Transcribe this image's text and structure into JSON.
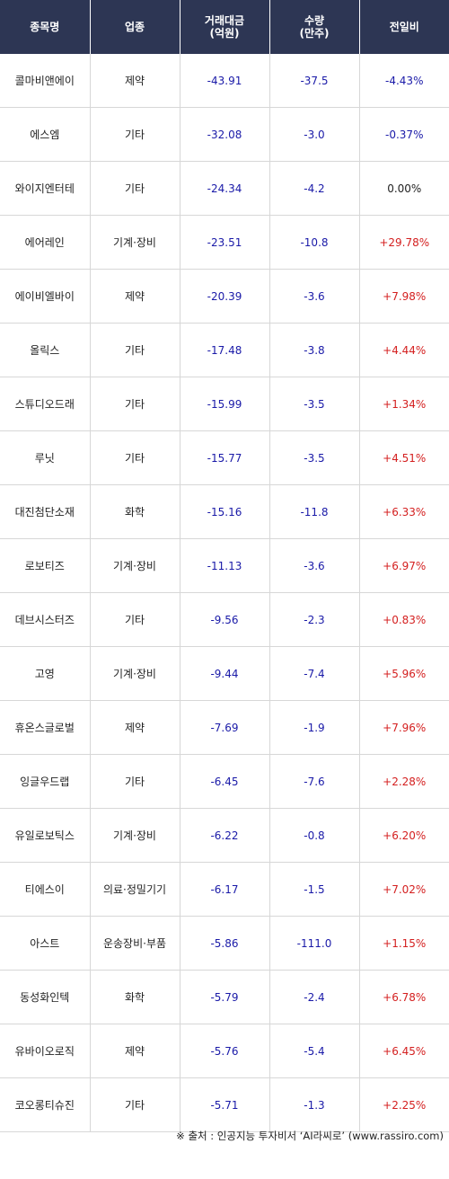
{
  "headers": {
    "name": "종목명",
    "sector": "업종",
    "amount_line1": "거래대금",
    "amount_line2": "(억원)",
    "volume_line1": "수량",
    "volume_line2": "(만주)",
    "change": "전일비"
  },
  "rows": [
    {
      "name": "콜마비앤에이",
      "sector": "제약",
      "amount": "-43.91",
      "volume": "-37.5",
      "change": "-4.43%",
      "dir": "down"
    },
    {
      "name": "에스엠",
      "sector": "기타",
      "amount": "-32.08",
      "volume": "-3.0",
      "change": "-0.37%",
      "dir": "down"
    },
    {
      "name": "와이지엔터테",
      "sector": "기타",
      "amount": "-24.34",
      "volume": "-4.2",
      "change": "0.00%",
      "dir": "flat"
    },
    {
      "name": "에어레인",
      "sector": "기계·장비",
      "amount": "-23.51",
      "volume": "-10.8",
      "change": "+29.78%",
      "dir": "up"
    },
    {
      "name": "에이비엘바이",
      "sector": "제약",
      "amount": "-20.39",
      "volume": "-3.6",
      "change": "+7.98%",
      "dir": "up"
    },
    {
      "name": "올릭스",
      "sector": "기타",
      "amount": "-17.48",
      "volume": "-3.8",
      "change": "+4.44%",
      "dir": "up"
    },
    {
      "name": "스튜디오드래",
      "sector": "기타",
      "amount": "-15.99",
      "volume": "-3.5",
      "change": "+1.34%",
      "dir": "up"
    },
    {
      "name": "루닛",
      "sector": "기타",
      "amount": "-15.77",
      "volume": "-3.5",
      "change": "+4.51%",
      "dir": "up"
    },
    {
      "name": "대진첨단소재",
      "sector": "화학",
      "amount": "-15.16",
      "volume": "-11.8",
      "change": "+6.33%",
      "dir": "up"
    },
    {
      "name": "로보티즈",
      "sector": "기계·장비",
      "amount": "-11.13",
      "volume": "-3.6",
      "change": "+6.97%",
      "dir": "up"
    },
    {
      "name": "데브시스터즈",
      "sector": "기타",
      "amount": "-9.56",
      "volume": "-2.3",
      "change": "+0.83%",
      "dir": "up"
    },
    {
      "name": "고영",
      "sector": "기계·장비",
      "amount": "-9.44",
      "volume": "-7.4",
      "change": "+5.96%",
      "dir": "up"
    },
    {
      "name": "휴온스글로벌",
      "sector": "제약",
      "amount": "-7.69",
      "volume": "-1.9",
      "change": "+7.96%",
      "dir": "up"
    },
    {
      "name": "잉글우드랩",
      "sector": "기타",
      "amount": "-6.45",
      "volume": "-7.6",
      "change": "+2.28%",
      "dir": "up"
    },
    {
      "name": "유일로보틱스",
      "sector": "기계·장비",
      "amount": "-6.22",
      "volume": "-0.8",
      "change": "+6.20%",
      "dir": "up"
    },
    {
      "name": "티에스이",
      "sector": "의료·정밀기기",
      "amount": "-6.17",
      "volume": "-1.5",
      "change": "+7.02%",
      "dir": "up"
    },
    {
      "name": "아스트",
      "sector": "운송장비·부품",
      "amount": "-5.86",
      "volume": "-111.0",
      "change": "+1.15%",
      "dir": "up"
    },
    {
      "name": "동성화인텍",
      "sector": "화학",
      "amount": "-5.79",
      "volume": "-2.4",
      "change": "+6.78%",
      "dir": "up"
    },
    {
      "name": "유바이오로직",
      "sector": "제약",
      "amount": "-5.76",
      "volume": "-5.4",
      "change": "+6.45%",
      "dir": "up"
    },
    {
      "name": "코오롱티슈진",
      "sector": "기타",
      "amount": "-5.71",
      "volume": "-1.3",
      "change": "+2.25%",
      "dir": "up"
    }
  ],
  "footer": "※ 출처 : 인공지능 투자비서 ‘AI라씨로’ (www.rassiro.com)",
  "colors": {
    "header_bg": "#2d3654",
    "negative": "#1a1aa8",
    "positive": "#d42020"
  }
}
